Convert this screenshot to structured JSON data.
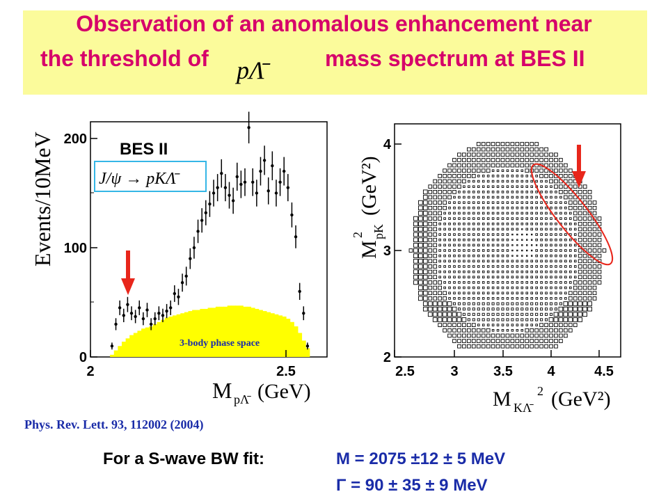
{
  "title": {
    "line1": "Observation of an anomalous enhancement near",
    "line2_before": "the threshold of",
    "line2_math": "pΛ̄",
    "line2_after": "mass spectrum at BES II"
  },
  "left_plot": {
    "label_experiment": "BES II",
    "label_reaction": "J/ψ → pKΛ̄",
    "ylabel": "Events/10MeV",
    "xlabel": "M",
    "xlabel_sub": "pΛ̄",
    "xlabel_unit": "(GeV)",
    "phase_space_label": "3-body phase space",
    "yticks": [
      "0",
      "100",
      "200"
    ],
    "xticks": [
      "2",
      "2.5"
    ]
  },
  "right_plot": {
    "ylabel": "M",
    "ylabel_sub": "pK",
    "ylabel_sup": "2",
    "ylabel_unit": "(GeV²)",
    "xlabel": "M",
    "xlabel_sub": "KΛ̄",
    "xlabel_sup": "2",
    "xlabel_unit": "(GeV²)",
    "xticks": [
      "2.5",
      "3",
      "3.5",
      "4",
      "4.5"
    ],
    "yticks": [
      "2",
      "3",
      "4"
    ]
  },
  "reference": "Phys. Rev. Lett. 93, 112002 (2004)",
  "fit": {
    "label": "For a S-wave BW fit:",
    "mass": "M = 2075 ±12 ± 5 MeV",
    "width": "Γ = 90 ± 35 ± 9 MeV"
  },
  "colors": {
    "banner": "#fbfb9b",
    "title": "#d6006a",
    "phase_space": "#ffff00",
    "arrow": "#e8261b",
    "blue_text": "#1a2ca8"
  },
  "chart_data": {
    "type": "scatter",
    "xlim": [
      2.0,
      2.6
    ],
    "ylim": [
      0,
      220
    ],
    "x": [
      2.055,
      2.065,
      2.075,
      2.085,
      2.095,
      2.105,
      2.115,
      2.125,
      2.135,
      2.145,
      2.155,
      2.165,
      2.175,
      2.185,
      2.195,
      2.205,
      2.215,
      2.225,
      2.235,
      2.245,
      2.255,
      2.265,
      2.275,
      2.285,
      2.295,
      2.305,
      2.315,
      2.325,
      2.335,
      2.345,
      2.355,
      2.365,
      2.375,
      2.385,
      2.395,
      2.405,
      2.415,
      2.425,
      2.435,
      2.445,
      2.455,
      2.465,
      2.475,
      2.485,
      2.495,
      2.505,
      2.515,
      2.525,
      2.535,
      2.545,
      2.555
    ],
    "y": [
      10,
      30,
      45,
      38,
      48,
      40,
      37,
      45,
      35,
      43,
      30,
      35,
      40,
      38,
      42,
      45,
      58,
      55,
      68,
      74,
      90,
      100,
      115,
      125,
      132,
      140,
      150,
      155,
      168,
      155,
      148,
      143,
      165,
      158,
      160,
      210,
      160,
      150,
      170,
      180,
      152,
      175,
      150,
      160,
      170,
      155,
      130,
      110,
      60,
      40,
      10
    ],
    "phase_space": [
      2,
      6,
      10,
      14,
      17,
      20,
      22,
      24,
      26,
      27,
      28,
      30,
      32,
      34,
      36,
      37,
      38,
      39,
      40,
      41,
      42,
      43,
      43,
      44,
      44,
      45,
      45,
      46,
      46,
      46,
      47,
      47,
      47,
      47,
      46,
      46,
      45,
      44,
      43,
      42,
      41,
      40,
      39,
      38,
      37,
      35,
      32,
      28,
      22,
      15,
      8
    ]
  }
}
